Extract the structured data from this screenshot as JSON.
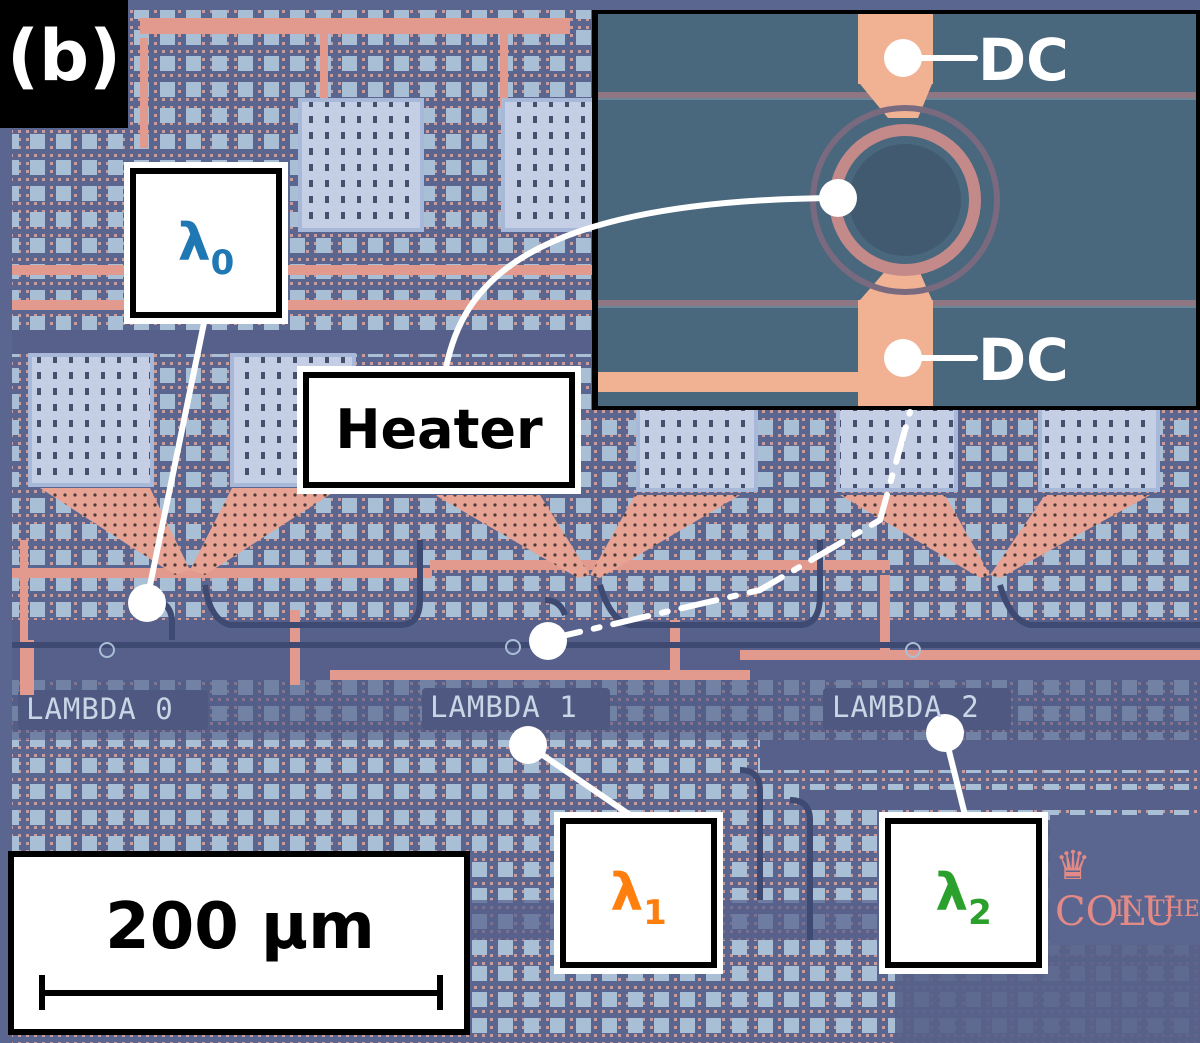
{
  "figure": {
    "panel_label": "(b)",
    "chip_labels": [
      "LAMBDA 0",
      "LAMBDA 1",
      "LAMBDA 2"
    ],
    "callouts": {
      "lambda0": {
        "symbol": "λ",
        "subscript": "0",
        "color": "#1f77b4"
      },
      "lambda1": {
        "symbol": "λ",
        "subscript": "1",
        "color": "#ff7f0e"
      },
      "lambda2": {
        "symbol": "λ",
        "subscript": "2",
        "color": "#2ca02c"
      },
      "heater": "Heater"
    },
    "inset_labels": {
      "dc_top": "DC",
      "dc_bottom": "DC"
    },
    "scale_bar": {
      "label": "200 μm"
    },
    "logo": {
      "text": "♛ COLU",
      "subtext": "IN THE"
    },
    "colors": {
      "chip_background": "#5a6690",
      "metal_trace": "#e29a8e",
      "fill_tile": "#a9bfd6",
      "inset_background": "#4f6f86",
      "annotation": "#ffffff"
    }
  }
}
